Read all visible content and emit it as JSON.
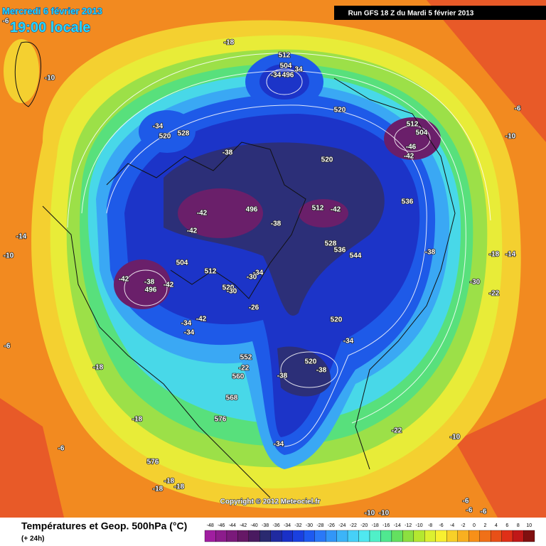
{
  "header": {
    "date": "Mercredi 6 février 2013",
    "time": "19:00 locale",
    "run": "Run GFS 18 Z du Mardi 5 février 2013"
  },
  "footer": {
    "title": "Températures et Geop. 500hPa (°C)",
    "step": "(+ 24h)",
    "copyright": "Copyright © 2012 Meteociel.fr"
  },
  "scale": {
    "ticks": [
      -48,
      -46,
      -44,
      -42,
      -40,
      -38,
      -36,
      -34,
      -32,
      -30,
      -28,
      -26,
      -24,
      -22,
      -20,
      -18,
      -16,
      -14,
      -12,
      -10,
      -8,
      -6,
      -4,
      -2,
      0,
      2,
      4,
      6,
      8,
      10
    ],
    "colors": [
      "#a01ea0",
      "#8c1c8c",
      "#7a1a7a",
      "#661866",
      "#4a1a60",
      "#2a2a70",
      "#202aa0",
      "#1a30c8",
      "#1a40e0",
      "#1e5af0",
      "#2a78f8",
      "#3296f8",
      "#3cb4f8",
      "#46d0f8",
      "#50e8f0",
      "#50f0c8",
      "#50e890",
      "#64e060",
      "#8ce040",
      "#b4e830",
      "#dcf030",
      "#f8f030",
      "#f8d028",
      "#f8b020",
      "#f89018",
      "#f07018",
      "#e85018",
      "#e03018",
      "#c01818",
      "#801010"
    ]
  },
  "map_labels": [
    -6,
    -18,
    -10,
    512,
    504,
    -34,
    496,
    34,
    -34,
    520,
    528,
    520,
    512,
    504,
    -46,
    -42,
    -38,
    520,
    -6,
    -10,
    496,
    512,
    -42,
    536,
    -42,
    -42,
    -38,
    528,
    536,
    544,
    -38,
    -18,
    -14,
    -14,
    -10,
    504,
    512,
    -34,
    -30,
    -42,
    -38,
    496,
    -42,
    520,
    -30,
    -30,
    -22,
    -26,
    -34,
    -42,
    -34,
    520,
    -34,
    -6,
    552,
    -18,
    -22,
    560,
    520,
    -38,
    -38,
    568,
    576,
    -18,
    -22,
    -10,
    -34,
    -6,
    576,
    -18,
    -18,
    -18,
    -10,
    -10,
    -6,
    -6,
    -6
  ]
}
